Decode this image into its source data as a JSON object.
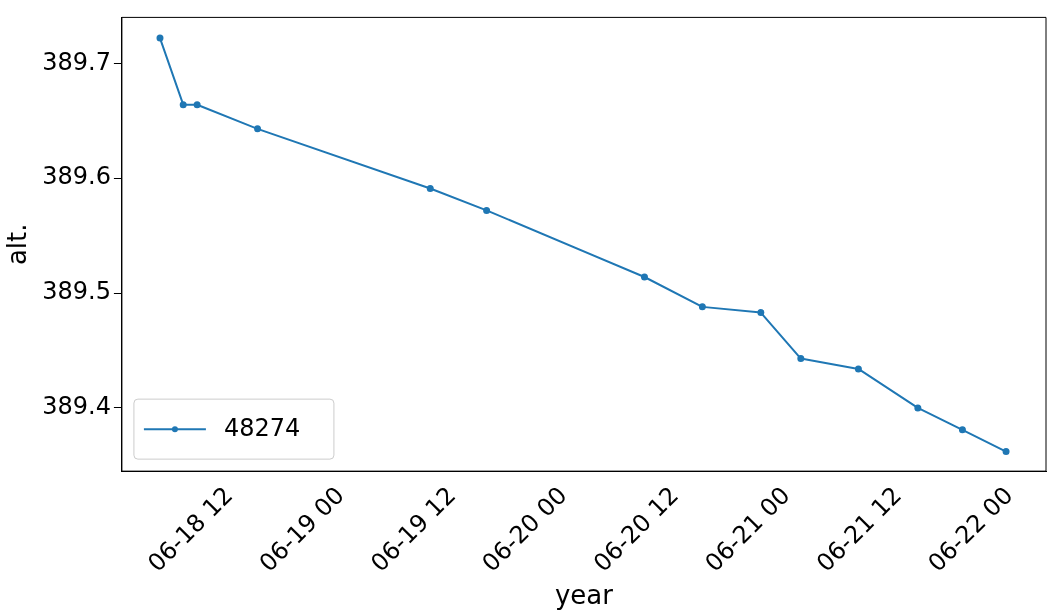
{
  "chart_data": {
    "type": "line",
    "xlabel": "year",
    "ylabel": "alt.",
    "x": [
      "--06-18T04:30",
      "--06-18T07:00",
      "--06-18T08:30",
      "--06-18T15:00",
      "--06-19T09:36",
      "--06-19T15:40",
      "--06-20T08:40",
      "--06-20T14:54",
      "--06-20T21:12",
      "--06-21T01:30",
      "--06-21T07:42",
      "--06-21T14:06",
      "--06-21T18:54",
      "--06-21T23:36"
    ],
    "series": [
      {
        "name": "48274",
        "color": "#1f77b4",
        "values": [
          389.722,
          389.664,
          389.664,
          389.643,
          389.591,
          389.572,
          389.514,
          389.488,
          389.483,
          389.443,
          389.434,
          389.4,
          389.381,
          389.362
        ]
      }
    ],
    "xlim": [
      "--06-18T00:24",
      "--06-22T03:54"
    ],
    "xticks": [
      {
        "value": "--06-18T12:00",
        "label": "06-18 12"
      },
      {
        "value": "--06-19T00:00",
        "label": "06-19 00"
      },
      {
        "value": "--06-19T12:00",
        "label": "06-19 12"
      },
      {
        "value": "--06-20T00:00",
        "label": "06-20 00"
      },
      {
        "value": "--06-20T12:00",
        "label": "06-20 12"
      },
      {
        "value": "--06-21T00:00",
        "label": "06-21 00"
      },
      {
        "value": "--06-21T12:00",
        "label": "06-21 12"
      },
      {
        "value": "--06-22T00:00",
        "label": "06-22 00"
      }
    ],
    "ylim": [
      389.345,
      389.74
    ],
    "yticks": [
      389.4,
      389.5,
      389.6,
      389.7
    ],
    "grid": false,
    "legend": "bottom left",
    "marker": "circle",
    "line_style": "solid"
  }
}
